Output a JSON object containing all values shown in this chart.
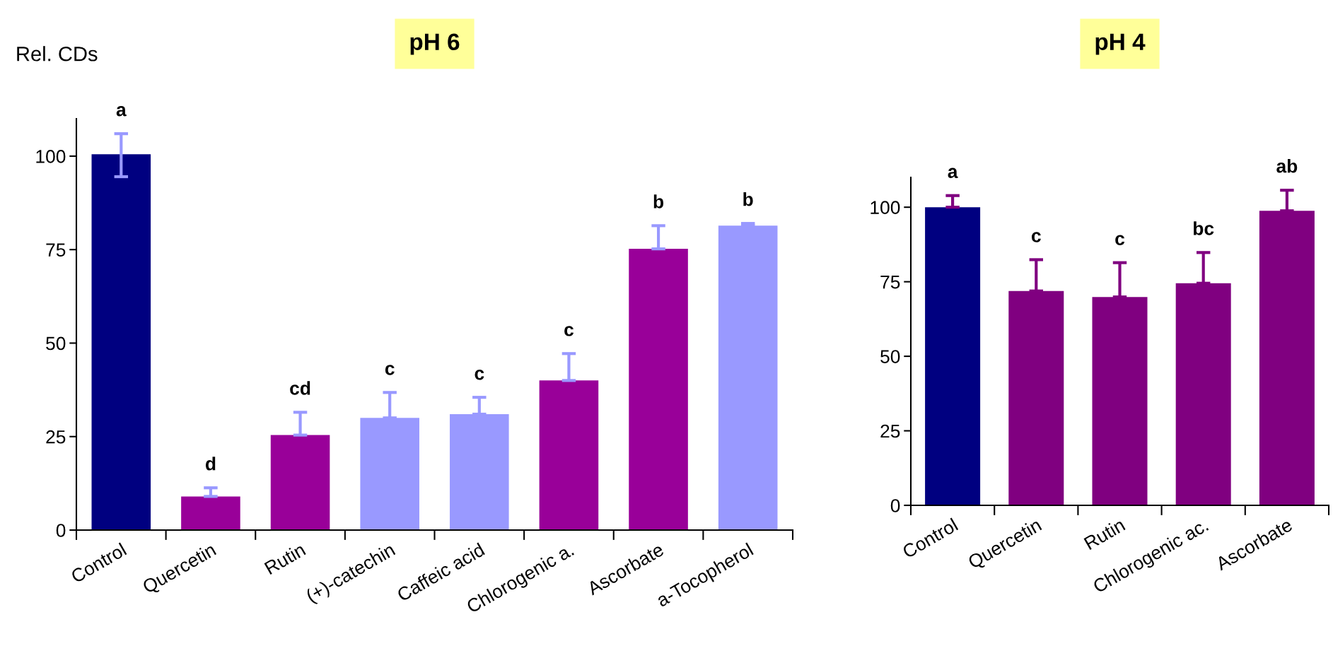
{
  "chart_data": [
    {
      "type": "bar",
      "title": "pH 6",
      "ylabel": "Rel. CDs",
      "categories": [
        "Control",
        "Quercetin",
        "Rutin",
        "(+)-catechin",
        "Caffeic acid",
        "Chlorogenic a.",
        "Ascorbate",
        "a-Tocopherol"
      ],
      "values": [
        100.5,
        9,
        25.4,
        30,
        31,
        40,
        75.2,
        81.4
      ],
      "colors": [
        "#000080",
        "#990099",
        "#990099",
        "#9999ff",
        "#9999ff",
        "#990099",
        "#990099",
        "#9999ff"
      ],
      "errors": [
        [
          94.5,
          106
        ],
        [
          9,
          11.3
        ],
        [
          25.4,
          31.5
        ],
        [
          30,
          36.8
        ],
        [
          31,
          35.5
        ],
        [
          40,
          47.2
        ],
        [
          75.2,
          81.4
        ],
        [
          81.4,
          82
        ]
      ],
      "ylim": [
        0,
        110
      ],
      "yticks": [
        0,
        25,
        50,
        75,
        100
      ],
      "grid": false,
      "legend": false,
      "annotations": [
        {
          "text": "a",
          "x": "Control",
          "y": 106
        },
        {
          "text": "d",
          "x": "Quercetin",
          "y": 11.3
        },
        {
          "text": "cd",
          "x": "Rutin",
          "y": 31.5
        },
        {
          "text": "c",
          "x": "(+)-catechin",
          "y": 36.8
        },
        {
          "text": "c",
          "x": "Caffeic acid",
          "y": 35.5
        },
        {
          "text": "c",
          "x": "Chlorogenic a.",
          "y": 47.2
        },
        {
          "text": "b",
          "x": "Ascorbate",
          "y": 81.4
        },
        {
          "text": "b",
          "x": "a-Tocopherol",
          "y": 82
        }
      ]
    },
    {
      "type": "bar",
      "title": "pH 4",
      "categories": [
        "Control",
        "Quercetin",
        "Rutin",
        "Chlorogenic ac.",
        "Ascorbate"
      ],
      "values": [
        100,
        71.9,
        69.9,
        74.5,
        98.8
      ],
      "colors": [
        "#000080",
        "#800080",
        "#800080",
        "#800080",
        "#800080"
      ],
      "errors": [
        [
          100,
          103.9
        ],
        [
          71.9,
          82.4
        ],
        [
          69.9,
          81.4
        ],
        [
          74.5,
          84.8
        ],
        [
          98.8,
          105.7
        ]
      ],
      "ylim": [
        0,
        110
      ],
      "yticks": [
        0,
        25,
        50,
        75,
        100
      ],
      "grid": false,
      "legend": false,
      "annotations": [
        {
          "text": "a",
          "x": "Control",
          "y": 103.9
        },
        {
          "text": "c",
          "x": "Quercetin",
          "y": 82.4
        },
        {
          "text": "c",
          "x": "Rutin",
          "y": 81.4
        },
        {
          "text": "bc",
          "x": "Chlorogenic ac.",
          "y": 84.8
        },
        {
          "text": "ab",
          "x": "Ascorbate",
          "y": 105.7
        }
      ]
    }
  ]
}
